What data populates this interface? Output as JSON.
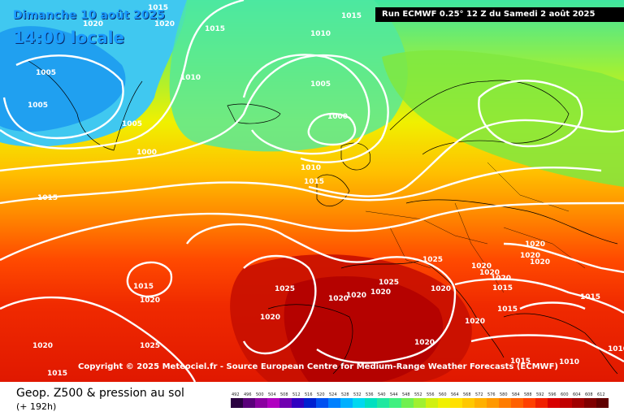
{
  "header": {
    "date": "Dimanche 10 août 2025",
    "time": "14:00 locale",
    "run": "Run ECMWF 0.25° 12 Z du Samedi 2 août 2025"
  },
  "copyright": "Copyright © 2025 Meteociel.fr - Source European Centre for Medium-Range Weather Forecasts (ECMWF)",
  "footer": {
    "product": "Geop. Z500 & pression au sol",
    "leadtime": "(+ 192h)"
  },
  "isobar_labels": [
    "1015",
    "1020",
    "1020",
    "1015",
    "1015",
    "1010",
    "1010",
    "1005",
    "1005",
    "1005",
    "1000",
    "1005",
    "1000",
    "1010",
    "1015",
    "1015",
    "1015",
    "1020",
    "1025",
    "1025",
    "1020",
    "1020",
    "1020",
    "1025",
    "1020",
    "1020",
    "1020",
    "1020",
    "1020",
    "1020",
    "1020",
    "1020",
    "1015",
    "1015",
    "1015",
    "1010",
    "1010",
    "1020",
    "1025",
    "1015",
    "1015",
    "1020",
    "1020"
  ],
  "color_scale": {
    "labels": [
      "492",
      "496",
      "500",
      "504",
      "508",
      "512",
      "516",
      "520",
      "524",
      "528",
      "532",
      "536",
      "540",
      "544",
      "548",
      "552",
      "556",
      "560",
      "564",
      "568",
      "572",
      "576",
      "580",
      "584",
      "588",
      "592",
      "596",
      "600",
      "604",
      "608",
      "612"
    ],
    "colors": [
      "#2a0040",
      "#5a007a",
      "#8a00a0",
      "#b000c0",
      "#7000b0",
      "#3000c0",
      "#0020d0",
      "#0050f0",
      "#0080ff",
      "#00b0ff",
      "#00d8f0",
      "#00e0c0",
      "#20e8a0",
      "#40f080",
      "#70f050",
      "#a0f030",
      "#d0f010",
      "#f0f000",
      "#ffe000",
      "#ffc800",
      "#ffb000",
      "#ff9800",
      "#ff7c00",
      "#ff6000",
      "#ff4000",
      "#f02000",
      "#d80000",
      "#c00000",
      "#a00000",
      "#800000",
      "#600000"
    ]
  }
}
